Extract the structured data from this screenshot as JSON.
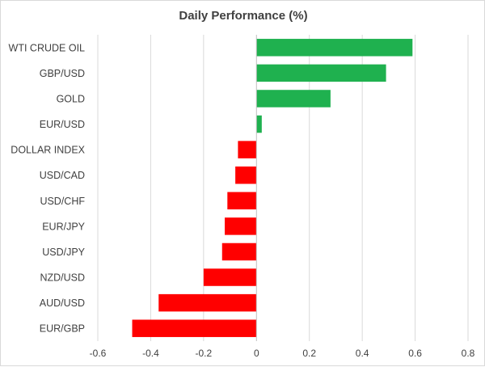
{
  "chart_data": {
    "type": "bar",
    "orientation": "horizontal",
    "title": "Daily Performance (%)",
    "xlabel": "",
    "ylabel": "",
    "xlim": [
      -0.6,
      0.8
    ],
    "ticks": [
      -0.6,
      -0.4,
      -0.2,
      0,
      0.2,
      0.4,
      0.6,
      0.8
    ],
    "tick_labels": [
      "-0.6",
      "-0.4",
      "-0.2",
      "0",
      "0.2",
      "0.4",
      "0.6",
      "0.8"
    ],
    "grid": true,
    "legend": "none",
    "categories": [
      "WTI CRUDE OIL",
      "GBP/USD",
      "GOLD",
      "EUR/USD",
      "DOLLAR INDEX",
      "USD/CAD",
      "USD/CHF",
      "EUR/JPY",
      "USD/JPY",
      "NZD/USD",
      "AUD/USD",
      "EUR/GBP"
    ],
    "values": [
      0.59,
      0.49,
      0.28,
      0.02,
      -0.07,
      -0.08,
      -0.11,
      -0.12,
      -0.13,
      -0.2,
      -0.37,
      -0.47
    ],
    "colors": {
      "positive": "#1fb14f",
      "negative": "#ff0000",
      "grid": "#d9d9d9",
      "axis": "#bfbfbf"
    }
  }
}
